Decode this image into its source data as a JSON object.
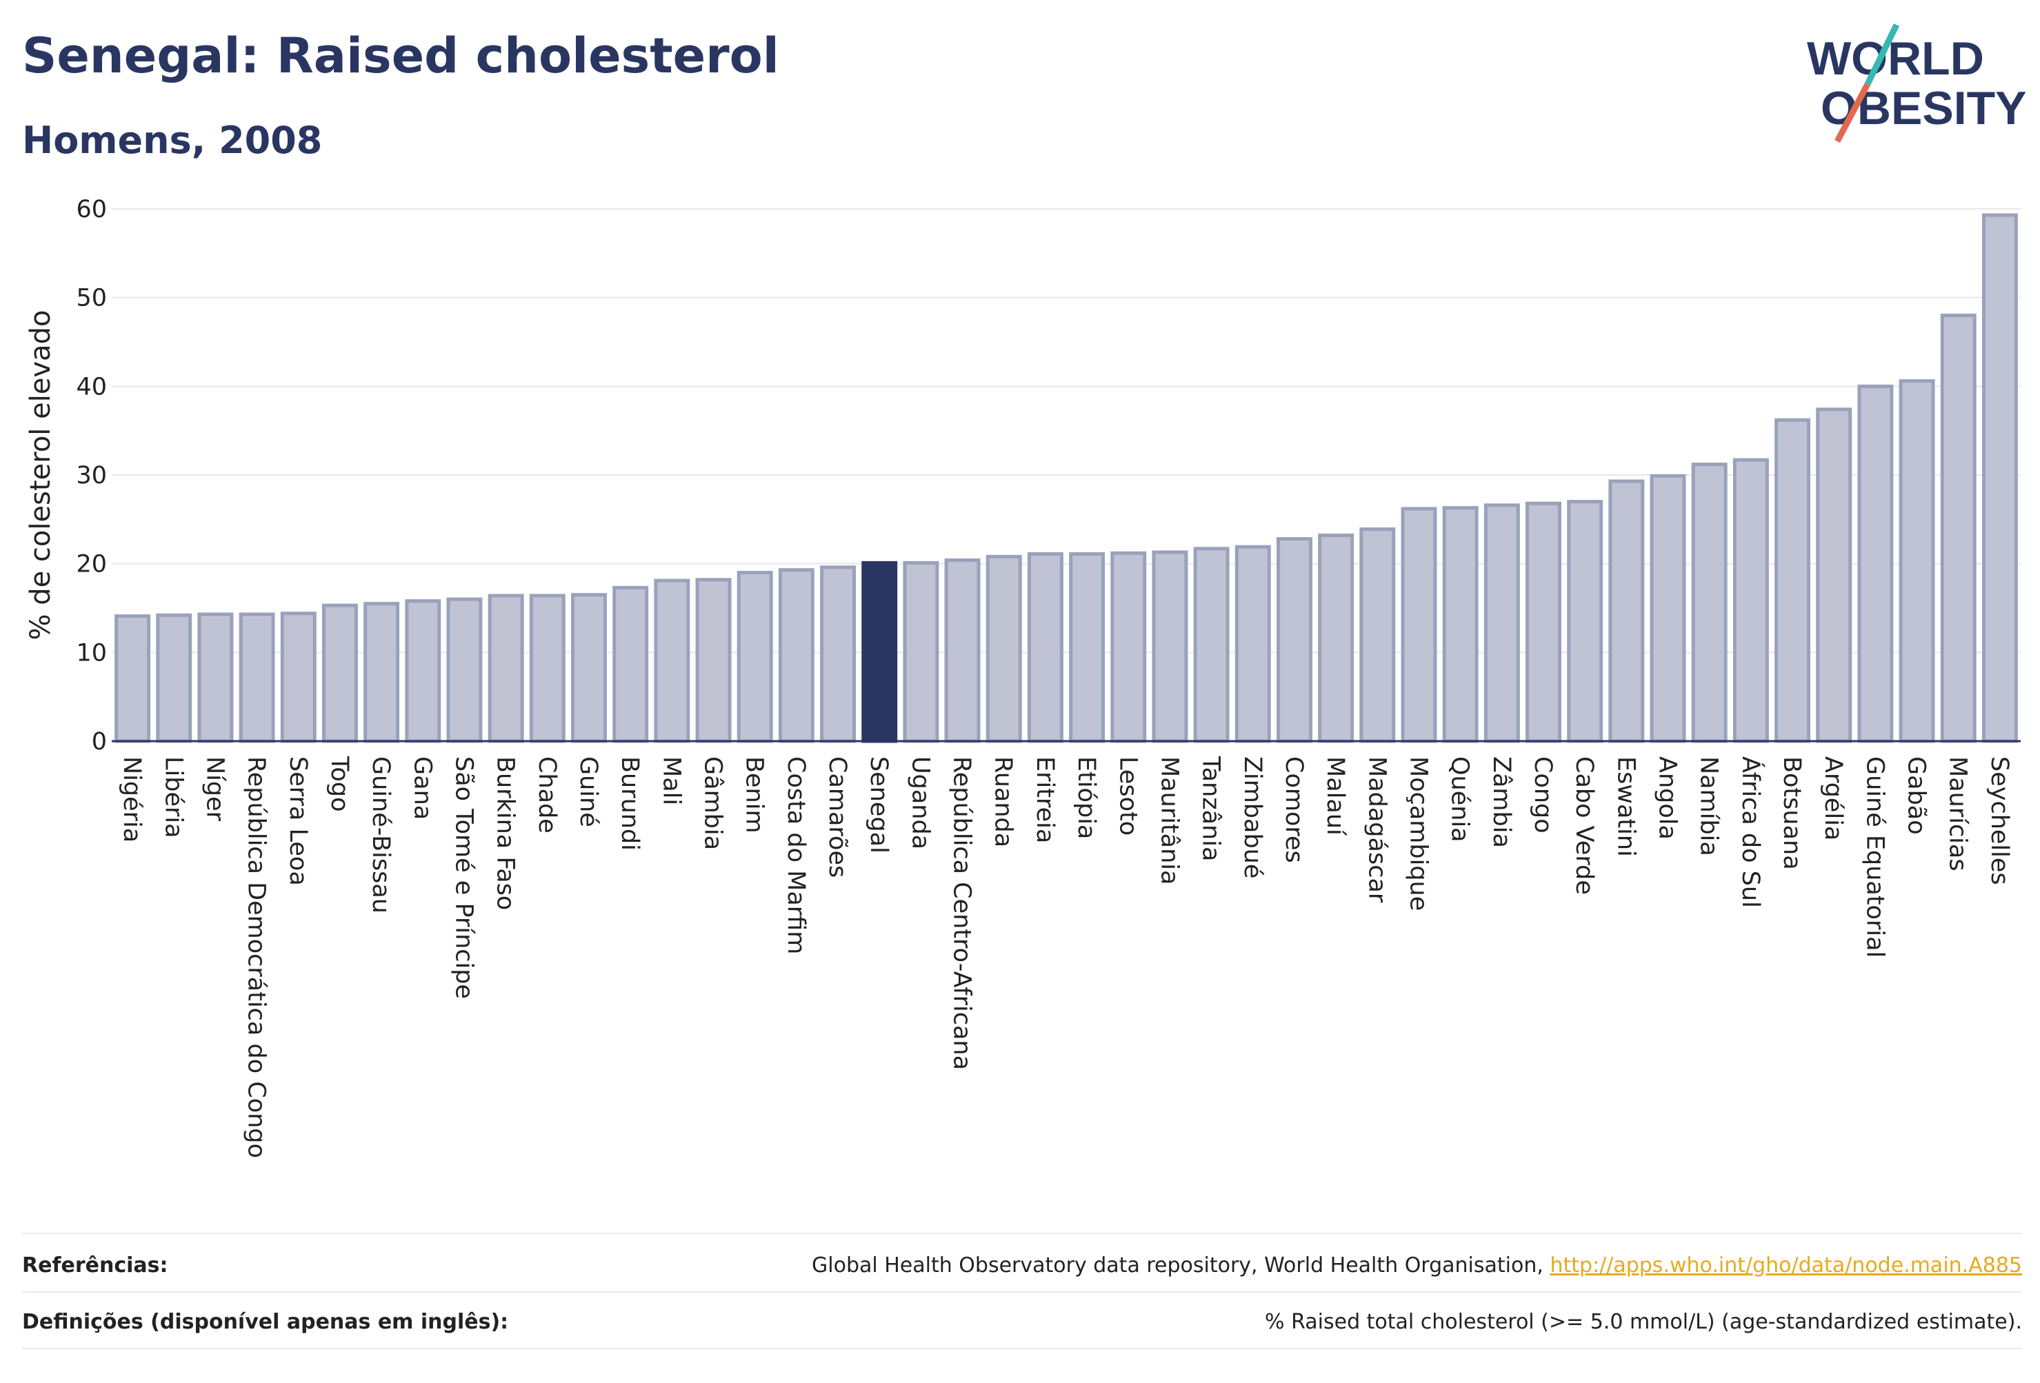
{
  "title": "Senegal: Raised cholesterol",
  "subtitle": "Homens, 2008",
  "logo": {
    "line1": "WORLD",
    "line2": "OBESITY",
    "accent_colors": [
      "#37b8b4",
      "#e3694f"
    ]
  },
  "colors": {
    "bar": "#bfc3d3",
    "bar_border": "#9aa1bb",
    "highlight": "#2a3662",
    "text": "#2a3662",
    "link": "#e8a91f"
  },
  "chart_data": {
    "type": "bar",
    "title": "Senegal: Raised cholesterol",
    "subtitle": "Homens, 2008",
    "ylabel": "% de colesterol elevado",
    "xlabel": "",
    "ylim": [
      0,
      60
    ],
    "yticks": [
      0,
      10,
      20,
      30,
      40,
      50,
      60
    ],
    "grid": true,
    "highlight": "Senegal",
    "categories": [
      "Nigéria",
      "Libéria",
      "Níger",
      "República Democrática do Congo",
      "Serra Leoa",
      "Togo",
      "Guiné-Bissau",
      "Gana",
      "São Tomé e Príncipe",
      "Burkina Faso",
      "Chade",
      "Guiné",
      "Burundi",
      "Mali",
      "Gâmbia",
      "Benim",
      "Costa do Marfim",
      "Camarões",
      "Senegal",
      "Uganda",
      "República Centro-Africana",
      "Ruanda",
      "Eritreia",
      "Etiópia",
      "Lesoto",
      "Mauritânia",
      "Tanzânia",
      "Zimbabué",
      "Comores",
      "Malauí",
      "Madagáscar",
      "Moçambique",
      "Quénia",
      "Zâmbia",
      "Congo",
      "Cabo Verde",
      "Eswatini",
      "Angola",
      "Namíbia",
      "África do Sul",
      "Botsuana",
      "Argélia",
      "Guiné Equatorial",
      "Gabão",
      "Maurícias",
      "Seychelles"
    ],
    "values": [
      14.1,
      14.2,
      14.3,
      14.3,
      14.4,
      15.3,
      15.5,
      15.8,
      16.0,
      16.4,
      16.4,
      16.5,
      17.3,
      18.1,
      18.2,
      19.0,
      19.3,
      19.6,
      20.1,
      20.1,
      20.4,
      20.8,
      21.1,
      21.1,
      21.2,
      21.3,
      21.7,
      21.9,
      22.8,
      23.2,
      23.9,
      26.2,
      26.3,
      26.6,
      26.8,
      27.0,
      29.3,
      29.9,
      31.2,
      31.7,
      36.2,
      37.4,
      40.0,
      40.6,
      48.0,
      59.3
    ]
  },
  "footer": {
    "references_label": "Referências:",
    "references_text": "Global Health Observatory data repository, World Health Organisation, ",
    "references_link": "http://apps.who.int/gho/data/node.main.A885",
    "definitions_label": "Definições (disponível apenas em inglês):",
    "definitions_text": "% Raised total cholesterol (>= 5.0 mmol/L) (age-standardized estimate)."
  }
}
